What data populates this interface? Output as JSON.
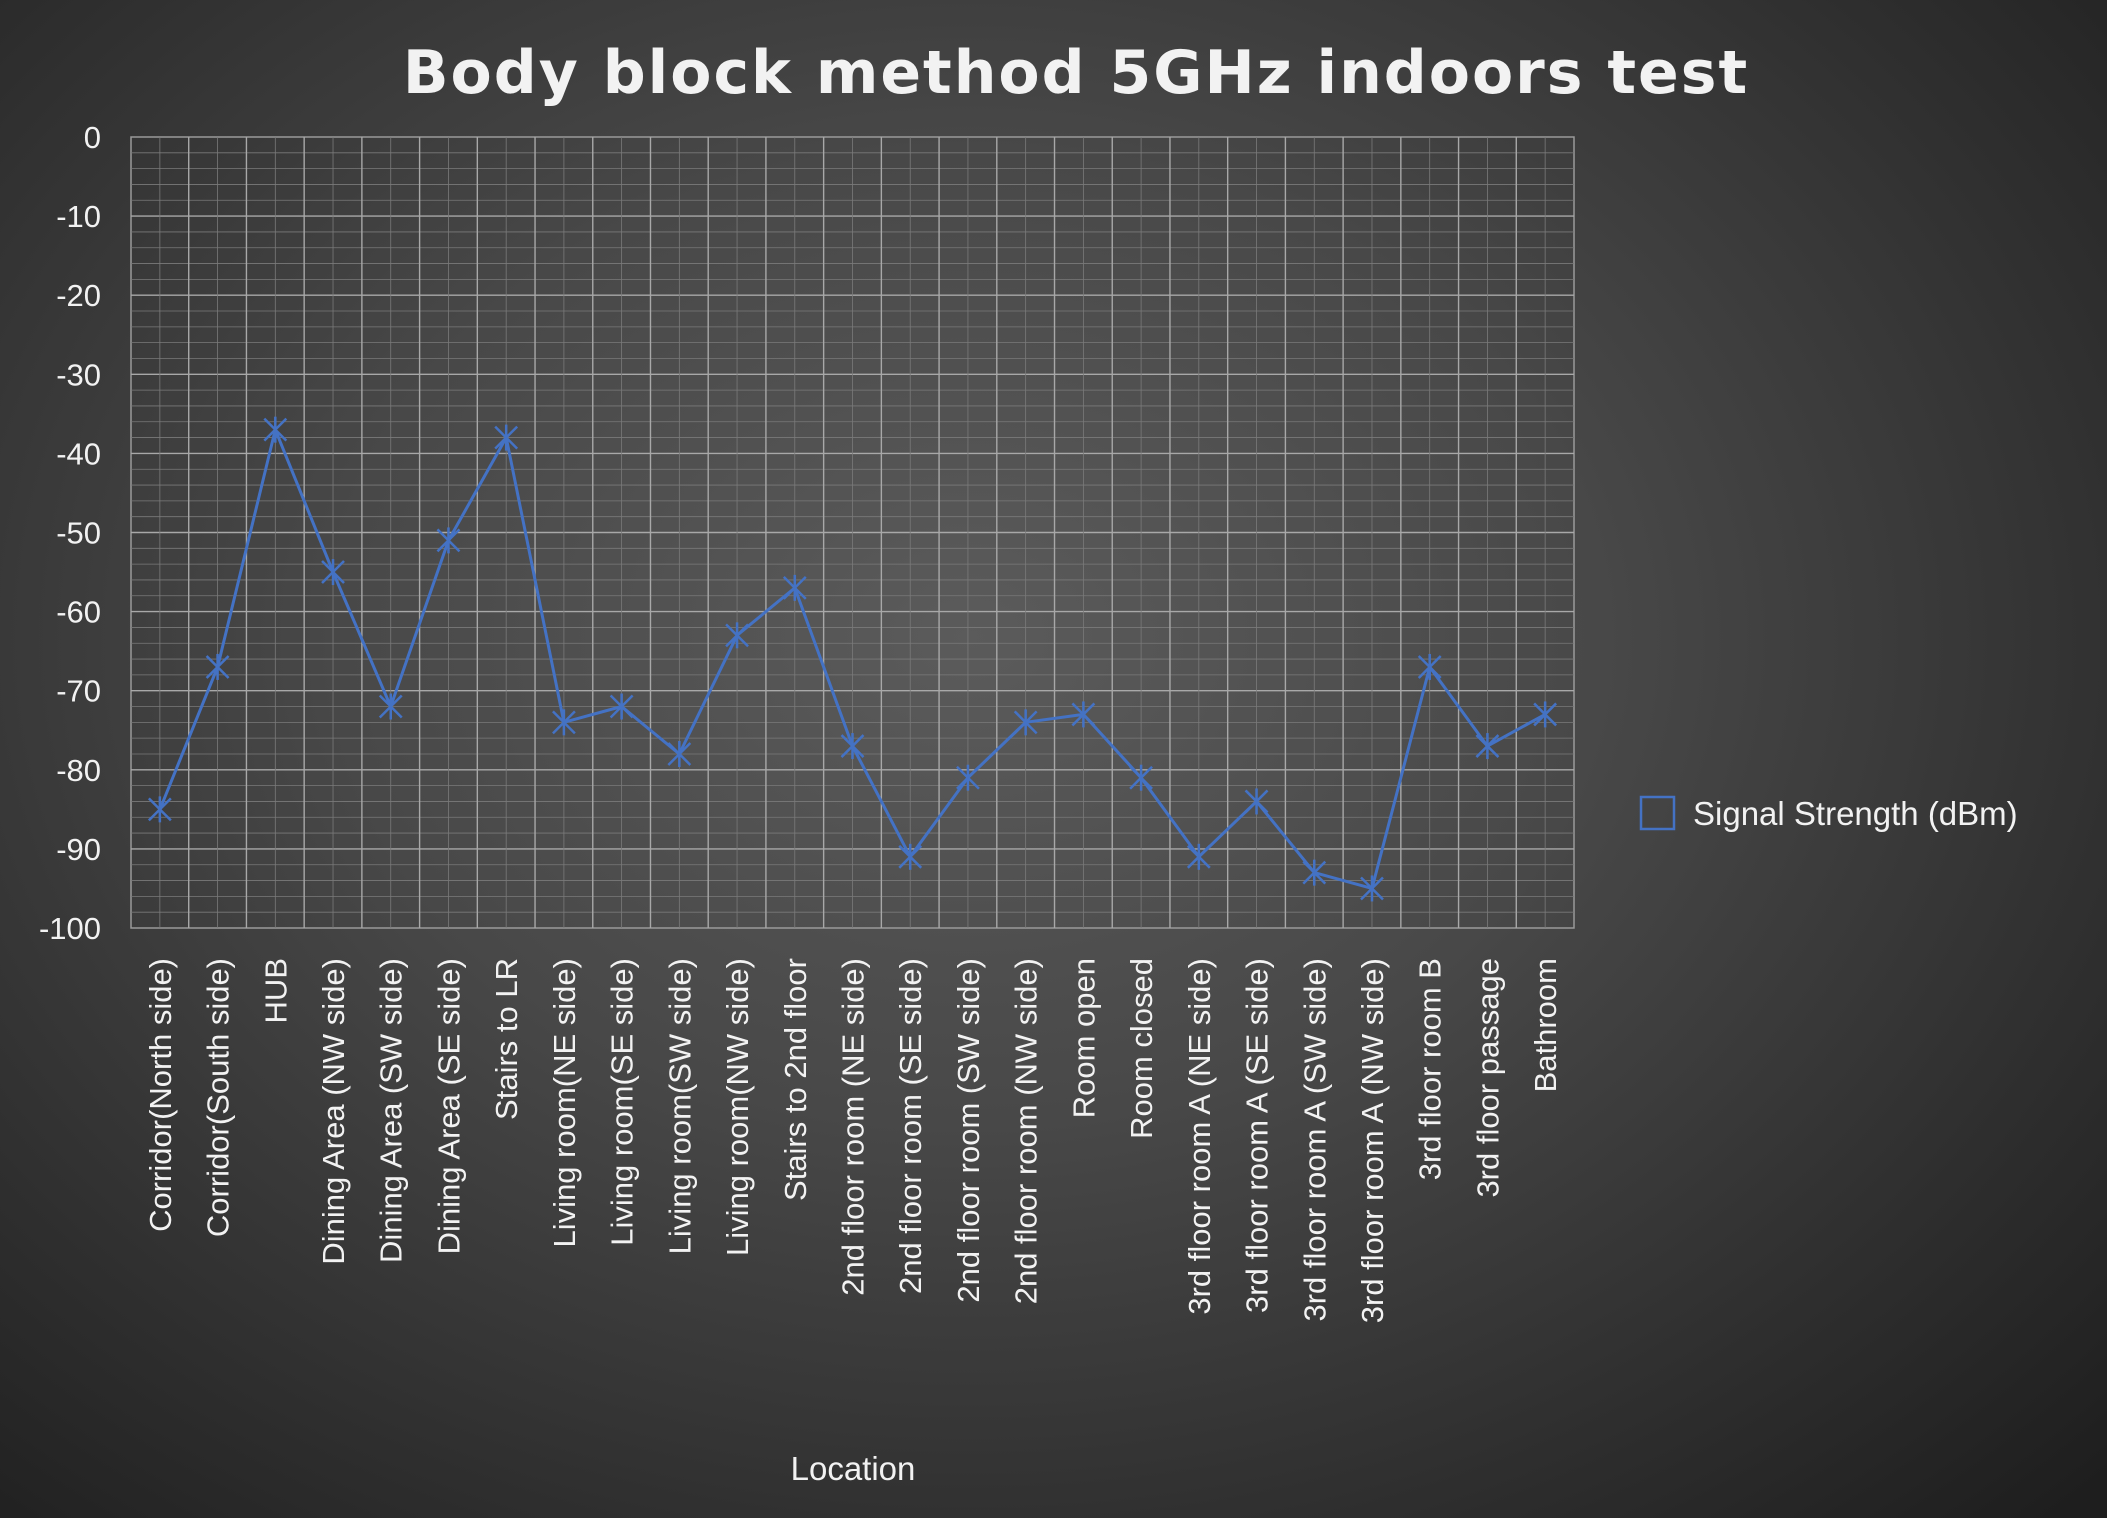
{
  "chart_data": {
    "type": "line",
    "title": "Body block method 5GHz indoors test",
    "xlabel": "Location",
    "ylabel": "",
    "ylim": [
      -100,
      0
    ],
    "ytick_step": 10,
    "yticks": [
      "0",
      "-10",
      "-20",
      "-30",
      "-40",
      "-50",
      "-60",
      "-70",
      "-80",
      "-90",
      "-100"
    ],
    "grid": true,
    "legend_position": "right",
    "series_color": "#4472c4",
    "marker": "asterisk",
    "categories": [
      "Corridor(North side)",
      "Corridor(South side)",
      "HUB",
      "Dining Area (NW side)",
      "Dining Area (SW side)",
      "Dining Area (SE side)",
      "Stairs to LR",
      "Living room(NE side)",
      "Living room(SE side)",
      "Living room(SW side)",
      "Living room(NW side)",
      "Stairs to 2nd floor",
      "2nd floor room (NE side)",
      "2nd floor room (SE side)",
      "2nd floor room (SW side)",
      "2nd floor room (NW side)",
      "Room open",
      "Room closed",
      "3rd floor room A (NE side)",
      "3rd floor room A (SE side)",
      "3rd floor room A (SW side)",
      "3rd floor room A (NW side)",
      "3rd floor room B",
      "3rd floor passage",
      "Bathroom"
    ],
    "series": [
      {
        "name": "Signal Strength (dBm)",
        "values": [
          -85,
          -67,
          -37,
          -55,
          -72,
          -51,
          -38,
          -74,
          -72,
          -78,
          -63,
          -57,
          -77,
          -91,
          -81,
          -74,
          -73,
          -81,
          -91,
          -84,
          -93,
          -95,
          -67,
          -77,
          -73
        ]
      }
    ]
  }
}
